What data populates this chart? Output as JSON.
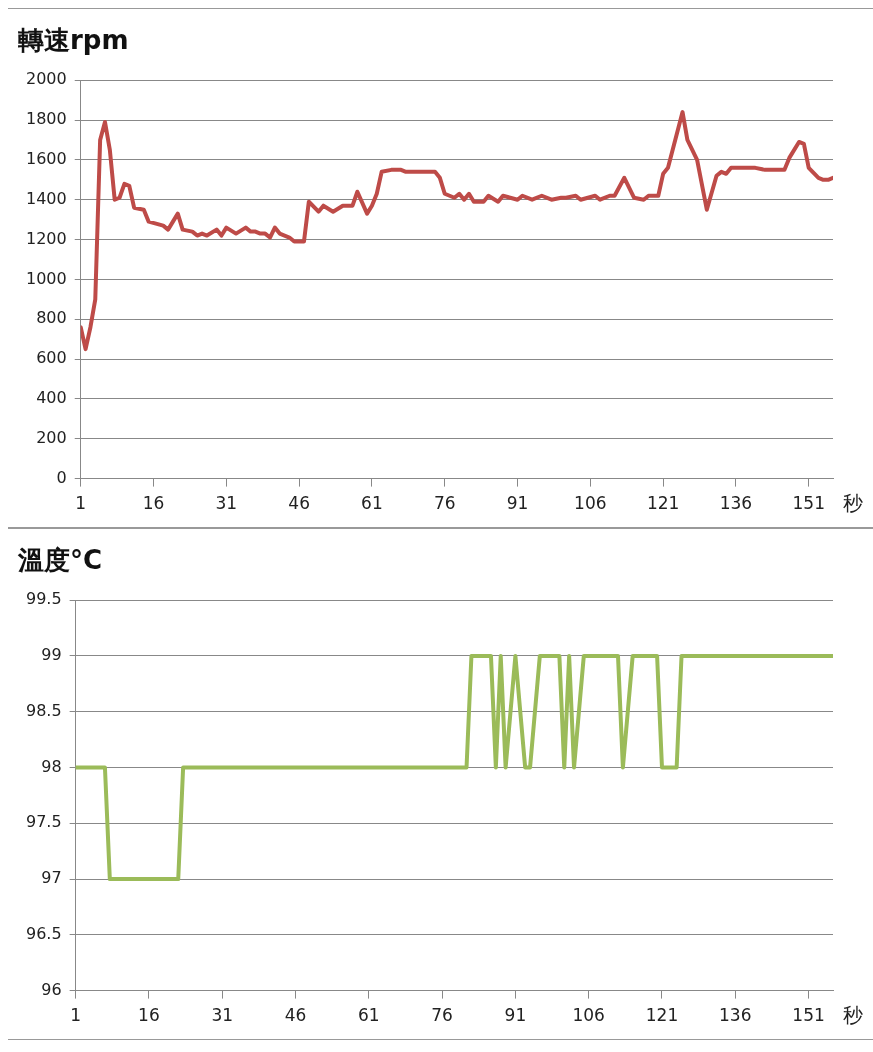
{
  "chart_data": [
    {
      "type": "line",
      "title": "轉速rpm",
      "xlabel": "秒",
      "color": "#be4b48",
      "marker": "none",
      "grid": "y",
      "x": [
        1,
        2,
        3,
        4,
        5,
        6,
        7,
        8,
        9,
        10,
        11,
        12,
        14,
        15,
        18,
        19,
        21,
        22,
        24,
        25,
        26,
        27,
        29,
        30,
        31,
        33,
        35,
        36,
        37,
        38,
        39,
        40,
        41,
        42,
        44,
        45,
        47,
        48,
        50,
        51,
        53,
        55,
        57,
        58,
        60,
        61,
        62,
        63,
        65,
        67,
        68,
        73,
        74,
        75,
        76,
        78,
        79,
        80,
        81,
        82,
        84,
        85,
        87,
        88,
        91,
        92,
        94,
        96,
        98,
        100,
        101,
        103,
        104,
        107,
        108,
        110,
        111,
        113,
        115,
        117,
        118,
        120,
        121,
        122,
        125,
        126,
        128,
        130,
        132,
        133,
        134,
        135,
        140,
        142,
        146,
        147,
        149,
        150,
        151,
        153,
        154,
        155,
        156
      ],
      "values": [
        760,
        650,
        760,
        900,
        1700,
        1790,
        1650,
        1400,
        1410,
        1480,
        1470,
        1360,
        1350,
        1290,
        1270,
        1250,
        1330,
        1250,
        1240,
        1220,
        1230,
        1220,
        1250,
        1220,
        1260,
        1230,
        1260,
        1240,
        1240,
        1230,
        1230,
        1210,
        1260,
        1230,
        1210,
        1190,
        1190,
        1390,
        1340,
        1370,
        1340,
        1370,
        1370,
        1440,
        1330,
        1370,
        1430,
        1540,
        1550,
        1550,
        1540,
        1540,
        1540,
        1510,
        1430,
        1410,
        1430,
        1400,
        1430,
        1390,
        1390,
        1420,
        1390,
        1420,
        1400,
        1420,
        1400,
        1420,
        1400,
        1410,
        1410,
        1420,
        1400,
        1420,
        1400,
        1420,
        1420,
        1510,
        1410,
        1400,
        1420,
        1420,
        1530,
        1560,
        1840,
        1700,
        1600,
        1350,
        1520,
        1540,
        1530,
        1560,
        1560,
        1550,
        1550,
        1610,
        1690,
        1680,
        1560,
        1510,
        1500,
        1500,
        1510
      ],
      "xlim": [
        1,
        156
      ],
      "xticks": [
        1,
        16,
        31,
        46,
        61,
        76,
        91,
        106,
        121,
        136,
        151
      ],
      "ylim": [
        0,
        2000
      ],
      "yticks": [
        0,
        200,
        400,
        600,
        800,
        1000,
        1200,
        1400,
        1600,
        1800,
        2000
      ]
    },
    {
      "type": "line",
      "title": "溫度°C",
      "xlabel": "秒",
      "color": "#9bbb59",
      "marker": "none",
      "grid": "y",
      "x": [
        1,
        7,
        8,
        22,
        23,
        81,
        82,
        86,
        87,
        88,
        89,
        91,
        93,
        94,
        96,
        100,
        101,
        102,
        103,
        105,
        112,
        113,
        115,
        120,
        121,
        124,
        125,
        156
      ],
      "values": [
        98,
        98,
        97,
        97,
        98,
        98,
        99,
        99,
        98,
        99,
        98,
        99,
        98,
        98,
        99,
        99,
        98,
        99,
        98,
        99,
        99,
        98,
        99,
        99,
        98,
        98,
        99,
        99
      ],
      "xlim": [
        1,
        156
      ],
      "xticks": [
        1,
        16,
        31,
        46,
        61,
        76,
        91,
        106,
        121,
        136,
        151
      ],
      "ylim": [
        96,
        99.5
      ],
      "yticks": [
        96,
        96.5,
        97,
        97.5,
        98,
        98.5,
        99,
        99.5
      ]
    }
  ]
}
